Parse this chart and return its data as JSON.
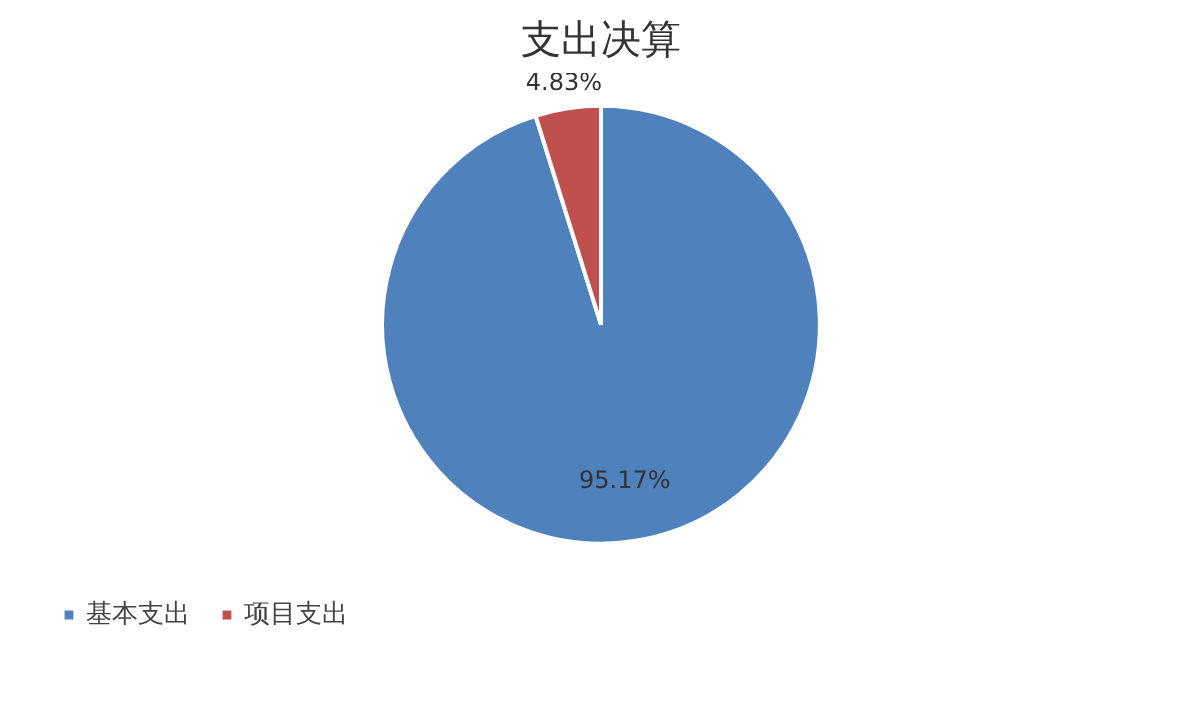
{
  "chart_data": {
    "type": "pie",
    "title": "支出决算",
    "categories": [
      "基本支出",
      "项目支出"
    ],
    "values": [
      95.17,
      4.83
    ],
    "colors": [
      "#4f81bd",
      "#c0504d"
    ],
    "value_labels": [
      "95.17%",
      "4.83%"
    ],
    "legend": "bottom left"
  }
}
